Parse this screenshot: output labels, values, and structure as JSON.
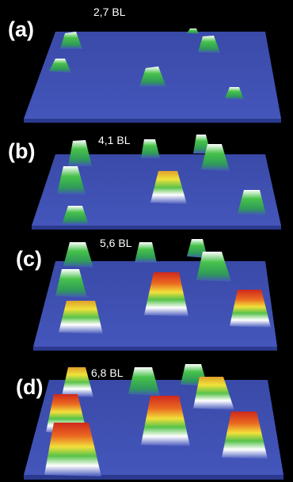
{
  "panels": [
    {
      "letter": "(a)",
      "coverage": "2,7 BL"
    },
    {
      "letter": "(b)",
      "coverage": "4,1 BL"
    },
    {
      "letter": "(c)",
      "coverage": "5,6 BL"
    },
    {
      "letter": "(d)",
      "coverage": "6,8 BL"
    }
  ],
  "colors": {
    "background": "#000000",
    "surface": "#3f4fb0",
    "surface_dark": "#2b3a8f",
    "island_low": "#3bb34a",
    "island_mid": "#e8e23a",
    "island_high": "#d9311f"
  }
}
